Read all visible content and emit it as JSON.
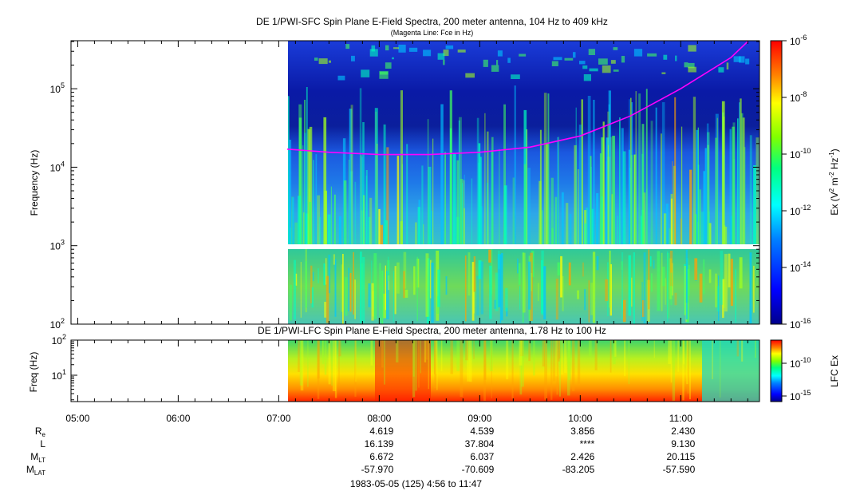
{
  "colors": {
    "background": "#ffffff",
    "spectrogram_low": "#0000a0",
    "spectrogram_high": "#ff0000",
    "fce_line": "#ff00ff"
  },
  "chart_data": [
    {
      "type": "heatmap",
      "title": "DE 1/PWI-SFC  Spin Plane E-Field Spectra, 200 meter antenna, 104 Hz to 409 kHz",
      "subtitle": "(Magenta Line: Fce in Hz)",
      "ylabel": "Frequency (Hz)",
      "y_scale": "log",
      "ylim": [
        100,
        409000
      ],
      "y_ticks": [
        {
          "base": "10",
          "exp": "2",
          "value": 100
        },
        {
          "base": "10",
          "exp": "3",
          "value": 1000
        },
        {
          "base": "10",
          "exp": "4",
          "value": 10000
        },
        {
          "base": "10",
          "exp": "5",
          "value": 100000
        }
      ],
      "xlim": [
        "04:56",
        "11:47"
      ],
      "data_start": "07:05",
      "data_gap_hz": [
        900,
        1000
      ],
      "colorbar": {
        "label_main": "Ex (V",
        "label_sup1": "2",
        "label_mid": " m",
        "label_sup2": "-2",
        "label_mid2": " Hz",
        "label_sup3": "-1",
        "label_end": ")",
        "scale": "log",
        "range": [
          1e-16,
          1e-06
        ],
        "ticks": [
          {
            "base": "10",
            "exp": "-6"
          },
          {
            "base": "10",
            "exp": "-8"
          },
          {
            "base": "10",
            "exp": "-10"
          },
          {
            "base": "10",
            "exp": "-12"
          },
          {
            "base": "10",
            "exp": "-14"
          },
          {
            "base": "10",
            "exp": "-16"
          }
        ]
      },
      "fce_line": {
        "times": [
          "07:05",
          "07:30",
          "08:00",
          "08:30",
          "09:00",
          "09:30",
          "10:00",
          "10:30",
          "11:00",
          "11:30",
          "11:40"
        ],
        "values": [
          17000,
          15500,
          14500,
          14500,
          15500,
          18000,
          25000,
          45000,
          100000,
          250000,
          400000
        ]
      }
    },
    {
      "type": "heatmap",
      "title": "DE 1/PWI-LFC  Spin Plane E-Field Spectra, 200 meter antenna, 1.78 Hz to 100 Hz",
      "ylabel": "Freq (Hz)",
      "y_scale": "log",
      "ylim": [
        1.78,
        100
      ],
      "y_ticks": [
        {
          "base": "10",
          "exp": "1",
          "value": 10
        },
        {
          "base": "10",
          "exp": "2",
          "value": 100
        }
      ],
      "xlim": [
        "04:56",
        "11:47"
      ],
      "data_start": "07:05",
      "colorbar": {
        "label": "LFC Ex",
        "ticks": [
          {
            "base": "10",
            "exp": "-10"
          },
          {
            "base": "10",
            "exp": "-15"
          }
        ]
      }
    }
  ],
  "x_axis": {
    "ticks": [
      {
        "label": "05:00",
        "time": "05:00"
      },
      {
        "label": "06:00",
        "time": "06:00"
      },
      {
        "label": "07:00",
        "time": "07:00"
      },
      {
        "label": "08:00",
        "time": "08:00"
      },
      {
        "label": "09:00",
        "time": "09:00"
      },
      {
        "label": "10:00",
        "time": "10:00"
      },
      {
        "label": "11:00",
        "time": "11:00"
      }
    ]
  },
  "ephemeris": {
    "rows": [
      {
        "label": "R",
        "sub": "e",
        "values": [
          "4.619",
          "4.539",
          "3.856",
          "2.430"
        ]
      },
      {
        "label": "L",
        "sub": "",
        "values": [
          "16.139",
          "37.804",
          "****",
          "9.130"
        ]
      },
      {
        "label": "M",
        "sub": "LT",
        "values": [
          "6.672",
          "6.037",
          "2.426",
          "20.115"
        ]
      },
      {
        "label": "M",
        "sub": "LAT",
        "values": [
          "-57.970",
          "-70.609",
          "-83.205",
          "-57.590"
        ]
      }
    ],
    "times": [
      "08:00",
      "09:00",
      "10:00",
      "11:00"
    ],
    "footer": "1983-05-05 (125) 4:56 to 11:47"
  }
}
